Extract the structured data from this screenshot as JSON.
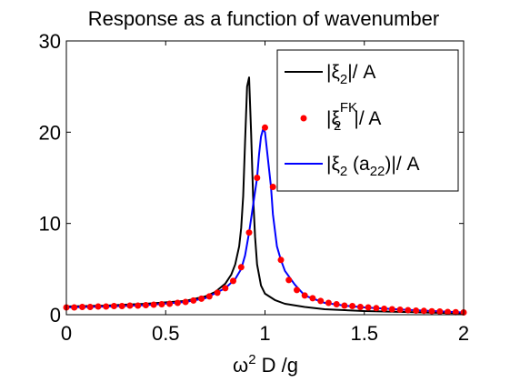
{
  "chart_data": {
    "type": "line",
    "title": "Response as a function of wavenumber",
    "xlabel": {
      "prefix": "ω",
      "sup": "2",
      "suffix": " D /g"
    },
    "ylabel": "",
    "xlim": [
      0,
      2
    ],
    "ylim": [
      0,
      30
    ],
    "xticks": [
      "0",
      "0.5",
      "1",
      "1.5",
      "2"
    ],
    "yticks": [
      "0",
      "10",
      "20",
      "30"
    ],
    "grid": false,
    "legend_position": "top-right",
    "series": [
      {
        "name": {
          "a": "|ξ",
          "sub": "2",
          "b": "|/ A"
        },
        "style": "line",
        "color": "#000000",
        "x": [
          0,
          0.2,
          0.4,
          0.6,
          0.7,
          0.75,
          0.8,
          0.83,
          0.85,
          0.87,
          0.88,
          0.89,
          0.9,
          0.91,
          0.92,
          0.93,
          0.94,
          0.95,
          0.96,
          0.98,
          1.0,
          1.05,
          1.1,
          1.2,
          1.3,
          1.5,
          1.7,
          2.0
        ],
        "y": [
          0.9,
          1.0,
          1.2,
          1.5,
          2.0,
          2.5,
          3.4,
          4.4,
          5.5,
          7.5,
          9.5,
          13,
          19,
          25,
          26,
          20,
          13,
          8.5,
          5.5,
          3.2,
          2.3,
          1.6,
          1.2,
          0.85,
          0.6,
          0.4,
          0.3,
          0.15
        ]
      },
      {
        "name": {
          "a": "|ξ",
          "sub": "2",
          "sup": "FK",
          "b": "|/ A"
        },
        "style": "markers",
        "color": "#ff0000",
        "x": [
          0,
          0.04,
          0.08,
          0.12,
          0.16,
          0.2,
          0.24,
          0.28,
          0.32,
          0.36,
          0.4,
          0.44,
          0.48,
          0.52,
          0.56,
          0.6,
          0.64,
          0.68,
          0.72,
          0.76,
          0.8,
          0.84,
          0.88,
          0.92,
          0.96,
          1.0,
          1.04,
          1.08,
          1.12,
          1.16,
          1.2,
          1.24,
          1.28,
          1.32,
          1.36,
          1.4,
          1.44,
          1.48,
          1.52,
          1.56,
          1.6,
          1.64,
          1.68,
          1.72,
          1.76,
          1.8,
          1.84,
          1.88,
          1.92,
          1.96,
          2.0
        ],
        "y": [
          0.8,
          0.8,
          0.85,
          0.85,
          0.9,
          0.9,
          0.95,
          0.95,
          1.0,
          1.0,
          1.05,
          1.1,
          1.15,
          1.2,
          1.3,
          1.4,
          1.55,
          1.75,
          2.0,
          2.4,
          2.9,
          3.7,
          5.2,
          9.0,
          15.0,
          20.5,
          14.0,
          6.0,
          3.8,
          2.7,
          2.1,
          1.8,
          1.5,
          1.3,
          1.15,
          1.0,
          0.95,
          0.85,
          0.8,
          0.72,
          0.65,
          0.6,
          0.55,
          0.5,
          0.45,
          0.42,
          0.38,
          0.35,
          0.3,
          0.28,
          0.25
        ]
      },
      {
        "name": {
          "a": "|ξ",
          "sub": "2",
          "mid": " (a",
          "sub2": "22",
          "b": ")|/ A"
        },
        "style": "line",
        "color": "#0000ff",
        "x": [
          0,
          0.2,
          0.4,
          0.6,
          0.7,
          0.8,
          0.85,
          0.88,
          0.9,
          0.92,
          0.94,
          0.96,
          0.97,
          0.98,
          0.99,
          1.0,
          1.01,
          1.02,
          1.03,
          1.04,
          1.06,
          1.08,
          1.1,
          1.15,
          1.2,
          1.3,
          1.4,
          1.5,
          1.7,
          2.0
        ],
        "y": [
          0.8,
          0.9,
          1.05,
          1.4,
          1.8,
          2.9,
          3.9,
          5.0,
          6.5,
          9.0,
          12,
          15,
          17.5,
          19.5,
          20.3,
          20,
          18,
          16,
          14,
          11,
          7.5,
          6.0,
          4.8,
          3.3,
          2.1,
          1.3,
          1.0,
          0.8,
          0.55,
          0.25
        ]
      }
    ]
  }
}
